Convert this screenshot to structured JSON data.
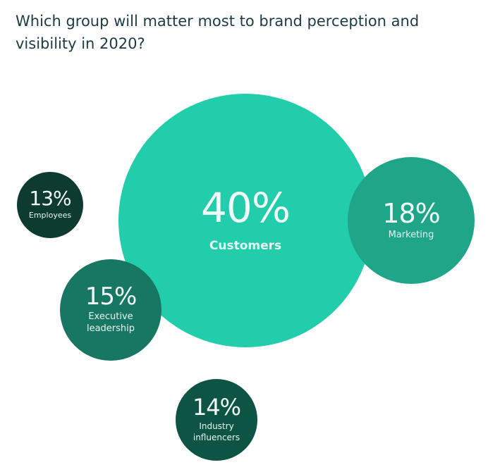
{
  "title": "Which group will matter most to brand perception and visibility in 2020?",
  "chart_data": {
    "type": "bubble",
    "title": "Which group will matter most to brand perception and visibility in 2020?",
    "series": [
      {
        "name": "Customers",
        "value": 40,
        "label": "40%",
        "color": "#22cdab"
      },
      {
        "name": "Marketing",
        "value": 18,
        "label": "18%",
        "color": "#1fa588"
      },
      {
        "name": "Executive leadership",
        "value": 15,
        "label": "15%",
        "color": "#177763"
      },
      {
        "name": "Industry influencers",
        "value": 14,
        "label": "14%",
        "color": "#0e5444"
      },
      {
        "name": "Employees",
        "value": 13,
        "label": "13%",
        "color": "#0d3b30"
      }
    ]
  }
}
